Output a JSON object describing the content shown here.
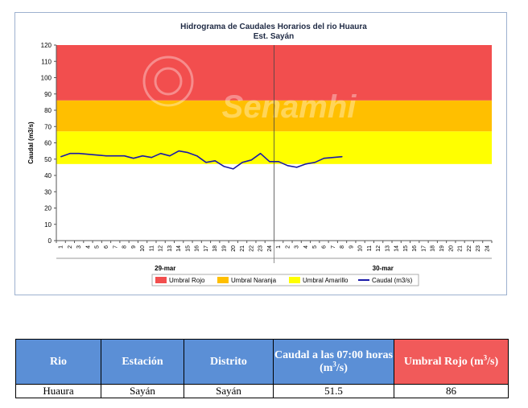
{
  "chart_data": {
    "type": "line",
    "title": "Hidrograma de Caudales Horarios del rio Huaura",
    "subtitle": "Est. Sayán",
    "ylabel": "Caudal (m3/s)",
    "xlabel": "",
    "ylim": [
      0,
      120
    ],
    "yticks": [
      0,
      10,
      20,
      30,
      40,
      50,
      60,
      70,
      80,
      90,
      100,
      110,
      120
    ],
    "hour_labels": [
      "1",
      "2",
      "3",
      "4",
      "5",
      "6",
      "7",
      "8",
      "9",
      "10",
      "11",
      "12",
      "13",
      "14",
      "15",
      "16",
      "17",
      "18",
      "19",
      "20",
      "21",
      "22",
      "23",
      "24",
      "1",
      "2",
      "3",
      "4",
      "5",
      "6",
      "7",
      "8",
      "9",
      "10",
      "11",
      "12",
      "13",
      "14",
      "15",
      "16",
      "17",
      "18",
      "19",
      "20",
      "21",
      "22",
      "23",
      "24"
    ],
    "day_labels": [
      "29-mar",
      "30-mar"
    ],
    "thresholds": [
      {
        "name": "Umbral Rojo",
        "from": 86,
        "to": 120,
        "color": "#f24e4e"
      },
      {
        "name": "Umbral Naranja",
        "from": 67,
        "to": 86,
        "color": "#ffbf00"
      },
      {
        "name": "Umbral Amarillo",
        "from": 47,
        "to": 67,
        "color": "#ffff00"
      }
    ],
    "series": [
      {
        "name": "Caudal (m3/s)",
        "color": "#1a1aa8",
        "values": [
          51.5,
          53.5,
          53.5,
          53,
          52.5,
          52,
          52,
          52,
          50.5,
          52,
          51,
          53.5,
          52,
          55,
          54,
          52,
          48,
          49,
          45.5,
          44,
          48,
          49.5,
          53.5,
          48.5,
          48.5,
          46,
          45,
          47,
          48,
          50.5,
          51,
          51.5
        ]
      }
    ],
    "legend": [
      "Umbral Rojo",
      "Umbral Naranja",
      "Umbral Amarillo",
      "Caudal (m3/s)"
    ],
    "legend_position": "bottom",
    "grid": false,
    "watermark": "Senamhi"
  },
  "table": {
    "headers": [
      "Rio",
      "Estación",
      "Distrito",
      "Caudal a las 07:00 horas (m3/s)",
      "Umbral Rojo (m3/s)"
    ],
    "row": [
      "Huaura",
      "Sayán",
      "Sayán",
      "51.5",
      "86"
    ]
  }
}
